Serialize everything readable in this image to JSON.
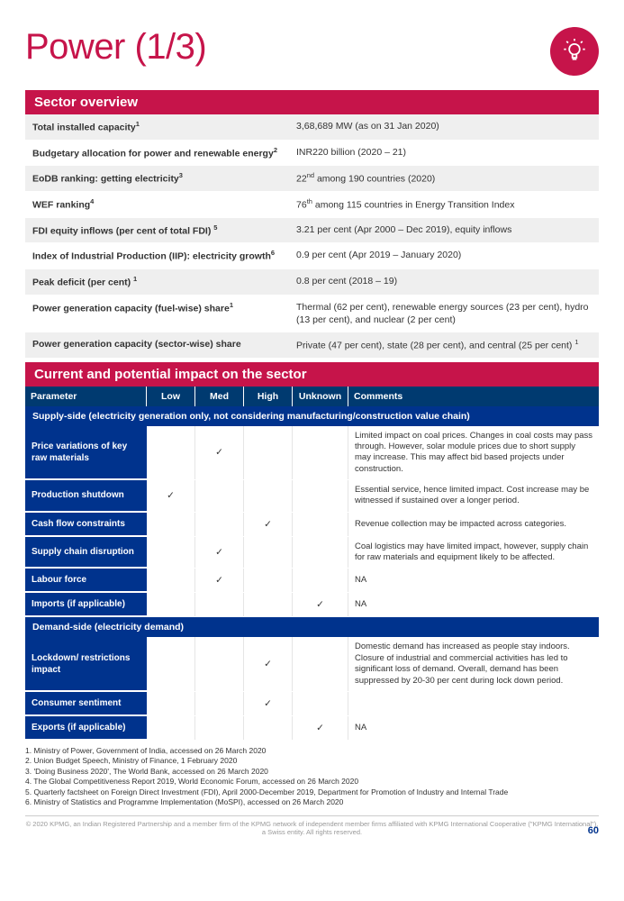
{
  "title": "Power (1/3)",
  "section1_title": "Sector overview",
  "overview": [
    {
      "label": "Total installed capacity",
      "sup": "1",
      "value": "3,68,689 MW (as on 31 Jan 2020)"
    },
    {
      "label": "Budgetary allocation for power and renewable energy",
      "sup": "2",
      "value": "INR220 billion (2020 – 21)"
    },
    {
      "label": "EoDB ranking: getting electricity",
      "sup": "3",
      "value": "22nd among 190 countries (2020)",
      "value_sup_pos": 2
    },
    {
      "label": "WEF ranking",
      "sup": "4",
      "value": "76th among 115 countries in Energy Transition Index",
      "value_sup_pos": 2
    },
    {
      "label": "FDI equity inflows (per cent of total FDI) ",
      "sup": "5",
      "value": "3.21 per cent (Apr 2000 – Dec 2019), equity inflows"
    },
    {
      "label": "Index of Industrial Production (IIP): electricity growth",
      "sup": "6",
      "value": "0.9 per cent (Apr 2019 – January 2020)"
    },
    {
      "label": "Peak deficit (per cent) ",
      "sup": "1",
      "value": "0.8 per cent (2018 – 19)"
    },
    {
      "label": "Power generation capacity (fuel-wise) share",
      "sup": "1",
      "value": "Thermal (62 per cent), renewable energy sources (23 per cent), hydro (13 per cent), and nuclear (2 per cent)"
    },
    {
      "label": "Power generation capacity (sector-wise) share",
      "sup": "",
      "value": "Private (47 per cent), state (28 per cent), and central (25 per cent) 1",
      "value_trail_sup": true
    }
  ],
  "section2_title": "Current and potential impact on the sector",
  "impact_columns": {
    "param": "Parameter",
    "low": "Low",
    "med": "Med",
    "high": "High",
    "unknown": "Unknown",
    "comments": "Comments"
  },
  "supply_title": "Supply-side (electricity generation only, not considering manufacturing/construction value chain)",
  "supply_rows": [
    {
      "param": "Price variations of key raw materials",
      "low": "",
      "med": "✓",
      "high": "",
      "unk": "",
      "comment": "Limited impact on coal prices. Changes in coal costs may pass through. However, solar module prices due to short supply may increase. This may affect bid based projects under construction."
    },
    {
      "param": "Production shutdown",
      "low": "✓",
      "med": "",
      "high": "",
      "unk": "",
      "comment": "Essential service, hence limited impact. Cost increase may be witnessed if sustained over a longer period."
    },
    {
      "param": "Cash flow constraints",
      "low": "",
      "med": "",
      "high": "✓",
      "unk": "",
      "comment": "Revenue collection may be impacted across categories."
    },
    {
      "param": "Supply chain disruption",
      "low": "",
      "med": "✓",
      "high": "",
      "unk": "",
      "comment": "Coal logistics may have limited impact, however, supply chain for raw materials and equipment likely to be affected."
    },
    {
      "param": "Labour force",
      "low": "",
      "med": "✓",
      "high": "",
      "unk": "",
      "comment": "NA"
    },
    {
      "param": "Imports (if applicable)",
      "low": "",
      "med": "",
      "high": "",
      "unk": "✓",
      "comment": "NA"
    }
  ],
  "demand_title": "Demand-side (electricity demand)",
  "demand_rows": [
    {
      "param": "Lockdown/ restrictions impact",
      "low": "",
      "med": "",
      "high": "✓",
      "unk": "",
      "comment": "Domestic demand has increased as people stay indoors. Closure of industrial and commercial activities has led to significant loss of demand. Overall, demand has been suppressed by 20-30 per cent during lock down period."
    },
    {
      "param": "Consumer sentiment",
      "low": "",
      "med": "",
      "high": "✓",
      "unk": "",
      "comment": ""
    },
    {
      "param": "Exports (if applicable)",
      "low": "",
      "med": "",
      "high": "",
      "unk": "✓",
      "comment": "NA"
    }
  ],
  "footnotes": [
    "1. Ministry of Power, Government of India, accessed on 26 March 2020",
    "2. Union Budget Speech, Ministry of Finance, 1 February 2020",
    "3. 'Doing Business 2020', The World Bank, accessed on 26 March 2020",
    "4. The Global Competitiveness Report 2019, World Economic Forum, accessed on 26 March 2020",
    "5. Quarterly factsheet on Foreign Direct Investment (FDI), April 2000-December 2019, Department for Promotion of Industry and Internal Trade",
    "6. Ministry of Statistics and Programme Implementation (MoSPI), accessed on 26 March 2020"
  ],
  "footer_text": "© 2020 KPMG, an Indian Registered Partnership and a member firm of the KPMG network of independent member firms affiliated with KPMG International Cooperative (\"KPMG International\"), a Swiss entity. All rights reserved.",
  "page_number": "60"
}
